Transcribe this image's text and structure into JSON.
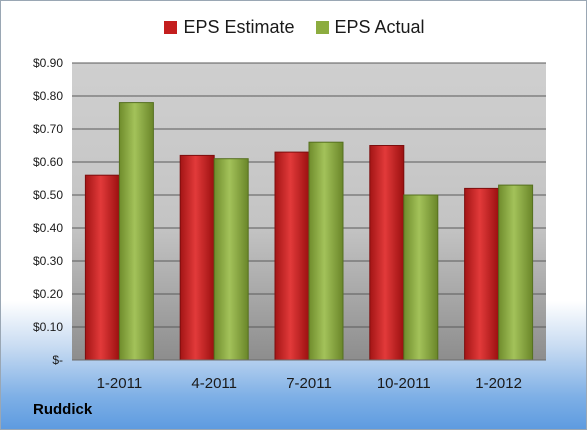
{
  "chart_data": {
    "type": "bar",
    "categories": [
      "1-2011",
      "4-2011",
      "7-2011",
      "10-2011",
      "1-2012"
    ],
    "series": [
      {
        "name": "EPS Estimate",
        "values": [
          0.56,
          0.62,
          0.63,
          0.65,
          0.52
        ],
        "color": "#c41e1e"
      },
      {
        "name": "EPS Actual",
        "values": [
          0.78,
          0.61,
          0.66,
          0.5,
          0.53
        ],
        "color": "#8cac3f"
      }
    ],
    "y_ticks": [
      {
        "value": 0.0,
        "label": "$-"
      },
      {
        "value": 0.1,
        "label": "$0.10"
      },
      {
        "value": 0.2,
        "label": "$0.20"
      },
      {
        "value": 0.3,
        "label": "$0.30"
      },
      {
        "value": 0.4,
        "label": "$0.40"
      },
      {
        "value": 0.5,
        "label": "$0.50"
      },
      {
        "value": 0.6,
        "label": "$0.60"
      },
      {
        "value": 0.7,
        "label": "$0.70"
      },
      {
        "value": 0.8,
        "label": "$0.80"
      },
      {
        "value": 0.9,
        "label": "$0.90"
      }
    ],
    "ylim": [
      0,
      0.9
    ],
    "grid": true,
    "legend_position": "top"
  },
  "company_label": "Ruddick"
}
